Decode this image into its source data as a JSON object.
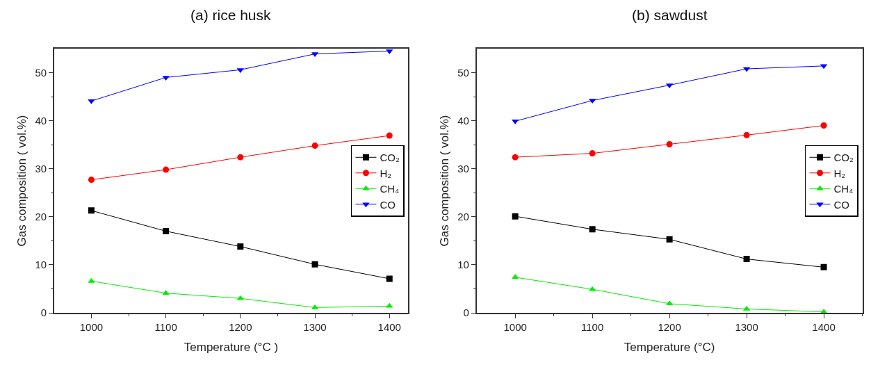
{
  "chart_data": [
    {
      "type": "line",
      "title": "(a) rice husk",
      "xlabel": "Temperature (°C )",
      "ylabel": "Gas composition ( vol.%)",
      "x": [
        1000,
        1100,
        1200,
        1300,
        1400
      ],
      "xlim": [
        950,
        1425
      ],
      "xticks": [
        1000,
        1100,
        1200,
        1300,
        1400
      ],
      "ylim": [
        0,
        55
      ],
      "yticks": [
        0,
        10,
        20,
        30,
        40,
        50
      ],
      "legend": "right",
      "series": [
        {
          "name": "CO₂",
          "color": "#000000",
          "marker": "square",
          "values": [
            21.3,
            17.0,
            13.8,
            10.1,
            7.1
          ]
        },
        {
          "name": "H₂",
          "color": "#ff0000",
          "marker": "circle",
          "values": [
            27.7,
            29.8,
            32.4,
            34.8,
            36.9
          ]
        },
        {
          "name": "CH₄",
          "color": "#00ee00",
          "marker": "triangle",
          "values": [
            6.6,
            4.1,
            3.0,
            1.1,
            1.4
          ]
        },
        {
          "name": "CO",
          "color": "#0000ff",
          "marker": "triangle-down",
          "values": [
            44.1,
            49.0,
            50.6,
            53.9,
            54.5
          ]
        }
      ]
    },
    {
      "type": "line",
      "title": "(b) sawdust",
      "xlabel": "Temperature (°C)",
      "ylabel": "Gas composition ( vol.%)",
      "x": [
        1000,
        1100,
        1200,
        1300,
        1400
      ],
      "xlim": [
        950,
        1450
      ],
      "xticks": [
        1000,
        1100,
        1200,
        1300,
        1400
      ],
      "ylim": [
        0,
        55
      ],
      "yticks": [
        0,
        10,
        20,
        30,
        40,
        50
      ],
      "legend": "right",
      "series": [
        {
          "name": "CO₂",
          "color": "#000000",
          "marker": "square",
          "values": [
            20.1,
            17.4,
            15.3,
            11.2,
            9.5
          ]
        },
        {
          "name": "H₂",
          "color": "#ff0000",
          "marker": "circle",
          "values": [
            32.4,
            33.2,
            35.1,
            37.0,
            39.0
          ]
        },
        {
          "name": "CH₄",
          "color": "#00ee00",
          "marker": "triangle",
          "values": [
            7.4,
            4.9,
            1.9,
            0.8,
            0.2
          ]
        },
        {
          "name": "CO",
          "color": "#0000ff",
          "marker": "triangle-down",
          "values": [
            39.9,
            44.2,
            47.4,
            50.8,
            51.4
          ]
        }
      ]
    }
  ]
}
